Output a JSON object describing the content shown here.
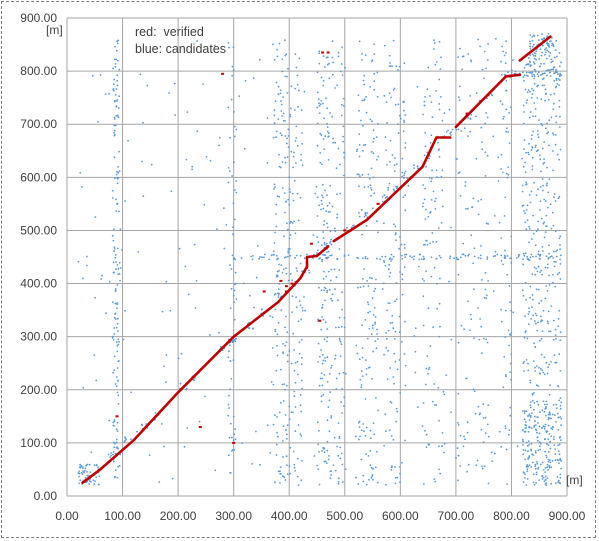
{
  "chart_data": {
    "type": "scatter",
    "title": "",
    "xlabel": "[m]",
    "ylabel": "[m]",
    "xlim": [
      0,
      900
    ],
    "ylim": [
      0,
      900
    ],
    "x_ticks": [
      "0.00",
      "100.00",
      "200.00",
      "300.00",
      "400.00",
      "500.00",
      "600.00",
      "700.00",
      "800.00",
      "900.00"
    ],
    "y_ticks": [
      "0.00",
      "100.00",
      "200.00",
      "300.00",
      "400.00",
      "500.00",
      "600.00",
      "700.00",
      "800.00",
      "900.00"
    ],
    "grid": true,
    "legend_placement": "top-left",
    "annotations": [
      "red:  verified",
      "blue: candidates"
    ],
    "colors": {
      "verified": "#c00000",
      "candidates": "#5b9bd5",
      "grid": "#a6a6a6"
    },
    "series": [
      {
        "key": "verified",
        "color": "#c00000",
        "segments": [
          [
            [
              28,
              25
            ],
            [
              60,
              50
            ],
            [
              120,
              105
            ],
            [
              200,
              195
            ],
            [
              300,
              300
            ],
            [
              380,
              365
            ],
            [
              420,
              410
            ],
            [
              432,
              432
            ]
          ],
          [
            [
              432,
              430
            ],
            [
              432,
              450
            ],
            [
              450,
              452
            ],
            [
              470,
              470
            ]
          ],
          [
            [
              480,
              480
            ],
            [
              540,
              520
            ],
            [
              580,
              560
            ],
            [
              640,
              620
            ],
            [
              665,
              675
            ],
            [
              690,
              675
            ]
          ],
          [
            [
              700,
              695
            ],
            [
              790,
              790
            ],
            [
              815,
              793
            ]
          ],
          [
            [
              815,
              820
            ],
            [
              870,
              865
            ]
          ]
        ],
        "points": [
          [
            280,
            795
          ],
          [
            460,
            835
          ],
          [
            470,
            835
          ],
          [
            355,
            385
          ],
          [
            385,
            405
          ],
          [
            395,
            395
          ],
          [
            405,
            400
          ],
          [
            395,
            385
          ],
          [
            300,
            100
          ],
          [
            240,
            130
          ],
          [
            455,
            330
          ],
          [
            90,
            150
          ],
          [
            720,
            720
          ],
          [
            560,
            550
          ],
          [
            620,
            600
          ],
          [
            440,
            475
          ],
          [
            500,
            500
          ]
        ]
      },
      {
        "key": "candidates",
        "color": "#5b9bd5",
        "diagonal_dots": [
          [
            30,
            25
          ],
          [
            80,
            75
          ],
          [
            90,
            85
          ],
          [
            110,
            105
          ],
          [
            140,
            130
          ],
          [
            160,
            150
          ],
          [
            210,
            205
          ],
          [
            230,
            225
          ],
          [
            280,
            280
          ],
          [
            295,
            295
          ],
          [
            300,
            290
          ],
          [
            330,
            320
          ],
          [
            350,
            345
          ],
          [
            380,
            375
          ],
          [
            405,
            400
          ],
          [
            430,
            420
          ],
          [
            470,
            470
          ],
          [
            510,
            505
          ],
          [
            540,
            530
          ],
          [
            570,
            560
          ],
          [
            590,
            580
          ],
          [
            610,
            605
          ],
          [
            630,
            620
          ],
          [
            650,
            640
          ],
          [
            690,
            685
          ],
          [
            720,
            715
          ],
          [
            760,
            755
          ],
          [
            800,
            795
          ],
          [
            840,
            840
          ],
          [
            860,
            855
          ],
          [
            865,
            860
          ],
          [
            870,
            850
          ]
        ],
        "vertical_bands": [
          [
            82,
            95,
            30,
            860,
            140
          ],
          [
            290,
            305,
            40,
            860,
            60
          ],
          [
            370,
            395,
            20,
            860,
            120
          ],
          [
            395,
            425,
            20,
            860,
            120
          ],
          [
            450,
            470,
            20,
            860,
            130
          ],
          [
            470,
            500,
            20,
            860,
            110
          ],
          [
            520,
            560,
            20,
            860,
            150
          ],
          [
            570,
            610,
            20,
            860,
            130
          ],
          [
            640,
            680,
            20,
            860,
            110
          ],
          [
            700,
            760,
            20,
            860,
            110
          ],
          [
            780,
            800,
            20,
            860,
            60
          ],
          [
            820,
            890,
            20,
            860,
            420
          ]
        ],
        "horizontal_bands": [
          [
            445,
            455,
            300,
            890,
            120
          ],
          [
            790,
            800,
            780,
            890,
            40
          ]
        ],
        "sparse_count": 280,
        "corner_clusters": [
          [
            20,
            60,
            20,
            60,
            50
          ],
          [
            820,
            890,
            20,
            180,
            150
          ],
          [
            830,
            880,
            800,
            870,
            50
          ]
        ]
      }
    ]
  }
}
